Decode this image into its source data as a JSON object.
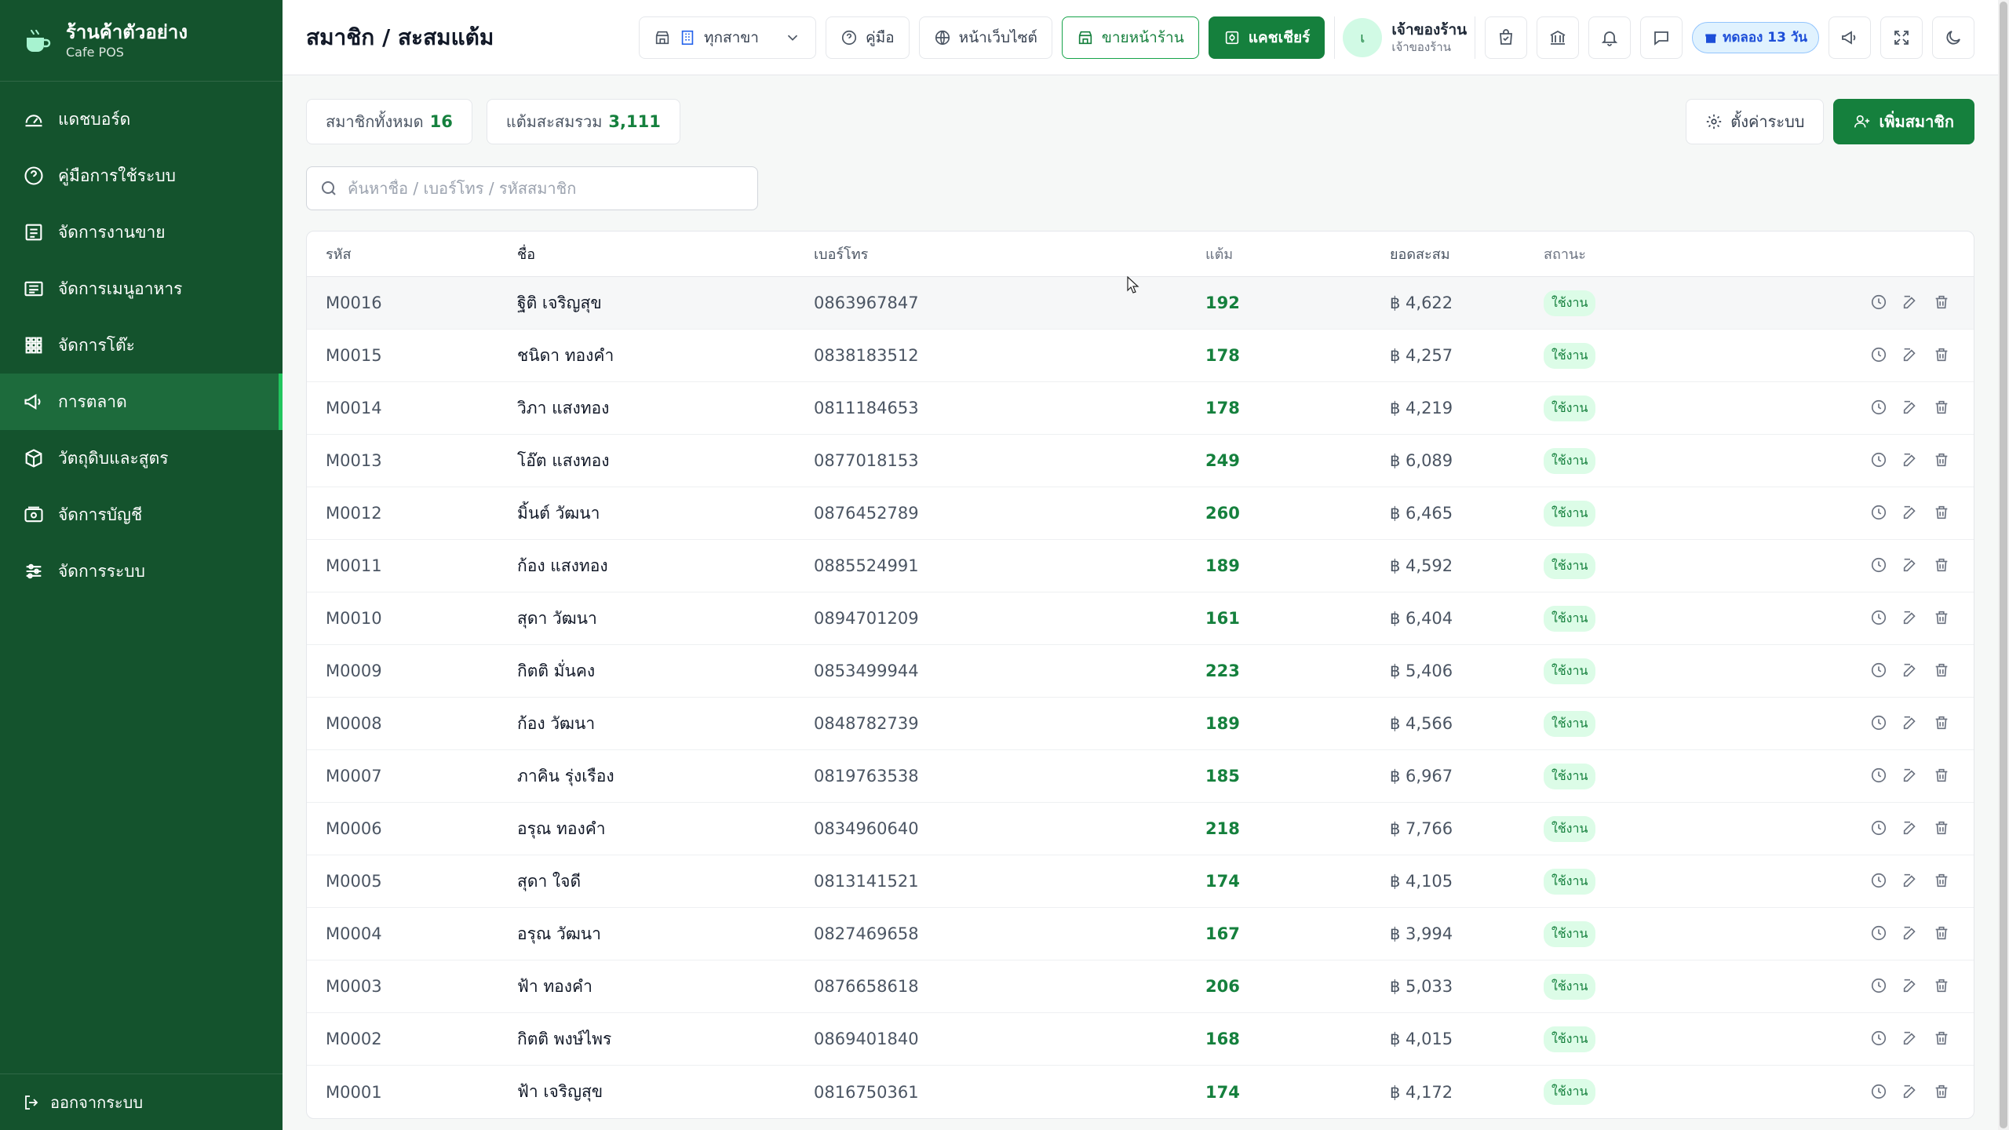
{
  "sidebar": {
    "brand_name": "ร้านค้าตัวอย่าง",
    "brand_sub": "Cafe POS",
    "items": [
      {
        "label": "แดชบอร์ด",
        "icon": "dashboard-icon"
      },
      {
        "label": "คู่มือการใช้ระบบ",
        "icon": "help-icon"
      },
      {
        "label": "จัดการงานขาย",
        "icon": "sales-icon"
      },
      {
        "label": "จัดการเมนูอาหาร",
        "icon": "menu-icon"
      },
      {
        "label": "จัดการโต๊ะ",
        "icon": "grid-icon"
      },
      {
        "label": "การตลาด",
        "icon": "megaphone-icon",
        "active": true
      },
      {
        "label": "วัตถุดิบและสูตร",
        "icon": "box-icon"
      },
      {
        "label": "จัดการบัญชี",
        "icon": "wallet-icon"
      },
      {
        "label": "จัดการระบบ",
        "icon": "sliders-icon"
      }
    ],
    "logout_label": "ออกจากระบบ"
  },
  "header": {
    "title": "สมาชิก / สะสมแต้ม",
    "branch_value": "ทุกสาขา",
    "guide_label": "คู่มือ",
    "website_label": "หน้าเว็บไซต์",
    "storefront_label": "ขายหน้าร้าน",
    "cashier_label": "แคชเชียร์",
    "user_initial": "เ",
    "user_name": "เจ้าของร้าน",
    "user_role": "เจ้าของร้าน",
    "trial_label": "ทดลอง 13 วัน"
  },
  "stats": {
    "members_label": "สมาชิกทั้งหมด",
    "members_value": "16",
    "points_label": "แต้มสะสมรวม",
    "points_value": "3,111"
  },
  "actions": {
    "settings_label": "ตั้งค่าระบบ",
    "add_label": "เพิ่มสมาชิก"
  },
  "search": {
    "placeholder": "ค้นหาชื่อ / เบอร์โทร / รหัสสมาชิก",
    "value": ""
  },
  "table": {
    "headers": {
      "code": "รหัส",
      "name": "ชื่อ",
      "phone": "เบอร์โทร",
      "points": "แต้ม",
      "total": "ยอดสะสม",
      "status": "สถานะ"
    },
    "rows": [
      {
        "code": "M0016",
        "name": "ฐิติ เจริญสุข",
        "phone": "0863967847",
        "points": "192",
        "total": "฿ 4,622",
        "status": "ใช้งาน"
      },
      {
        "code": "M0015",
        "name": "ชนิดา ทองคำ",
        "phone": "0838183512",
        "points": "178",
        "total": "฿ 4,257",
        "status": "ใช้งาน"
      },
      {
        "code": "M0014",
        "name": "วิภา แสงทอง",
        "phone": "0811184653",
        "points": "178",
        "total": "฿ 4,219",
        "status": "ใช้งาน"
      },
      {
        "code": "M0013",
        "name": "โอ๊ต แสงทอง",
        "phone": "0877018153",
        "points": "249",
        "total": "฿ 6,089",
        "status": "ใช้งาน"
      },
      {
        "code": "M0012",
        "name": "มิ้นต์ วัฒนา",
        "phone": "0876452789",
        "points": "260",
        "total": "฿ 6,465",
        "status": "ใช้งาน"
      },
      {
        "code": "M0011",
        "name": "ก้อง แสงทอง",
        "phone": "0885524991",
        "points": "189",
        "total": "฿ 4,592",
        "status": "ใช้งาน"
      },
      {
        "code": "M0010",
        "name": "สุดา วัฒนา",
        "phone": "0894701209",
        "points": "161",
        "total": "฿ 6,404",
        "status": "ใช้งาน"
      },
      {
        "code": "M0009",
        "name": "กิตติ มั่นคง",
        "phone": "0853499944",
        "points": "223",
        "total": "฿ 5,406",
        "status": "ใช้งาน"
      },
      {
        "code": "M0008",
        "name": "ก้อง วัฒนา",
        "phone": "0848782739",
        "points": "189",
        "total": "฿ 4,566",
        "status": "ใช้งาน"
      },
      {
        "code": "M0007",
        "name": "ภาคิน รุ่งเรือง",
        "phone": "0819763538",
        "points": "185",
        "total": "฿ 6,967",
        "status": "ใช้งาน"
      },
      {
        "code": "M0006",
        "name": "อรุณ ทองคำ",
        "phone": "0834960640",
        "points": "218",
        "total": "฿ 7,766",
        "status": "ใช้งาน"
      },
      {
        "code": "M0005",
        "name": "สุดา ใจดี",
        "phone": "0813141521",
        "points": "174",
        "total": "฿ 4,105",
        "status": "ใช้งาน"
      },
      {
        "code": "M0004",
        "name": "อรุณ วัฒนา",
        "phone": "0827469658",
        "points": "167",
        "total": "฿ 3,994",
        "status": "ใช้งาน"
      },
      {
        "code": "M0003",
        "name": "ฟ้า ทองคำ",
        "phone": "0876658618",
        "points": "206",
        "total": "฿ 5,033",
        "status": "ใช้งาน"
      },
      {
        "code": "M0002",
        "name": "กิตติ พงษ์ไพร",
        "phone": "0869401840",
        "points": "168",
        "total": "฿ 4,015",
        "status": "ใช้งาน"
      },
      {
        "code": "M0001",
        "name": "ฟ้า เจริญสุข",
        "phone": "0816750361",
        "points": "174",
        "total": "฿ 4,172",
        "status": "ใช้งาน"
      }
    ]
  },
  "colors": {
    "sidebar": "#14532d",
    "accent": "#15803d",
    "badge_bg": "#dcfce7"
  }
}
